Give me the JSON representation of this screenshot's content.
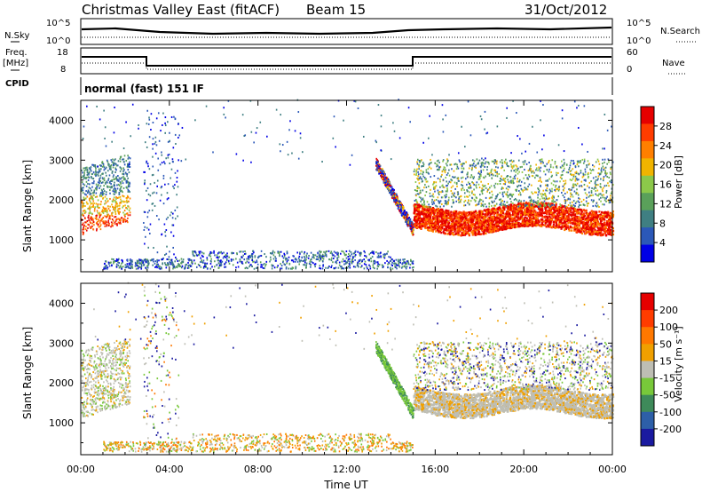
{
  "header": {
    "station": "Christmas Valley East (fitACF)",
    "beam": "Beam 15",
    "date": "31/Oct/2012"
  },
  "nsky_panel": {
    "left_label": "N.Sky",
    "right_label": "N.Search",
    "left_ticks": [
      "10^5",
      "10^0"
    ],
    "right_ticks": [
      "10^5",
      "10^0"
    ]
  },
  "freq_panel": {
    "left_label_1": "Freq.",
    "left_label_2": "[MHz]",
    "right_label": "Nave",
    "left_ticks": [
      "18",
      "8"
    ],
    "right_ticks": [
      "60",
      "0"
    ]
  },
  "cpid_panel": {
    "label": "CPID",
    "value": "normal (fast) 151 IF"
  },
  "colors": {
    "power_scale": [
      "#0000e6",
      "#2b58b8",
      "#3f7f82",
      "#5aa05a",
      "#8cc84a",
      "#f0b400",
      "#ff7f00",
      "#ff3c00",
      "#e60000"
    ],
    "velocity_scale": [
      "#1a1aa0",
      "#2d5fa8",
      "#3e8a5a",
      "#78c83a",
      "#bebeb4",
      "#f0a000",
      "#ff7800",
      "#ff3c00",
      "#e60000"
    ]
  },
  "chart_data": [
    {
      "type": "heatmap",
      "name": "power",
      "ylabel": "Slant Range [km]",
      "ylim": [
        200,
        4500
      ],
      "xlim": [
        "00:00",
        "24:00"
      ],
      "x_ticks": [
        "00:00",
        "04:00",
        "08:00",
        "12:00",
        "16:00",
        "20:00",
        "00:00"
      ],
      "y_ticks": [
        1000,
        2000,
        3000,
        4000
      ],
      "colorbar": {
        "label": "Power [dB]",
        "ticks": [
          "28",
          "24",
          "20",
          "16",
          "12",
          "8",
          "4"
        ],
        "range": [
          0,
          32
        ]
      }
    },
    {
      "type": "heatmap",
      "name": "velocity",
      "ylabel": "Slant Range [km]",
      "xlabel": "Time UT",
      "ylim": [
        200,
        4500
      ],
      "xlim": [
        "00:00",
        "24:00"
      ],
      "x_ticks": [
        "00:00",
        "04:00",
        "08:00",
        "12:00",
        "16:00",
        "20:00",
        "00:00"
      ],
      "y_ticks": [
        1000,
        2000,
        3000,
        4000
      ],
      "colorbar": {
        "label": "Velocity [m s⁻¹]",
        "ticks": [
          "200",
          "100",
          "50",
          "15",
          "-15",
          "-50",
          "-100",
          "-200"
        ]
      }
    }
  ]
}
